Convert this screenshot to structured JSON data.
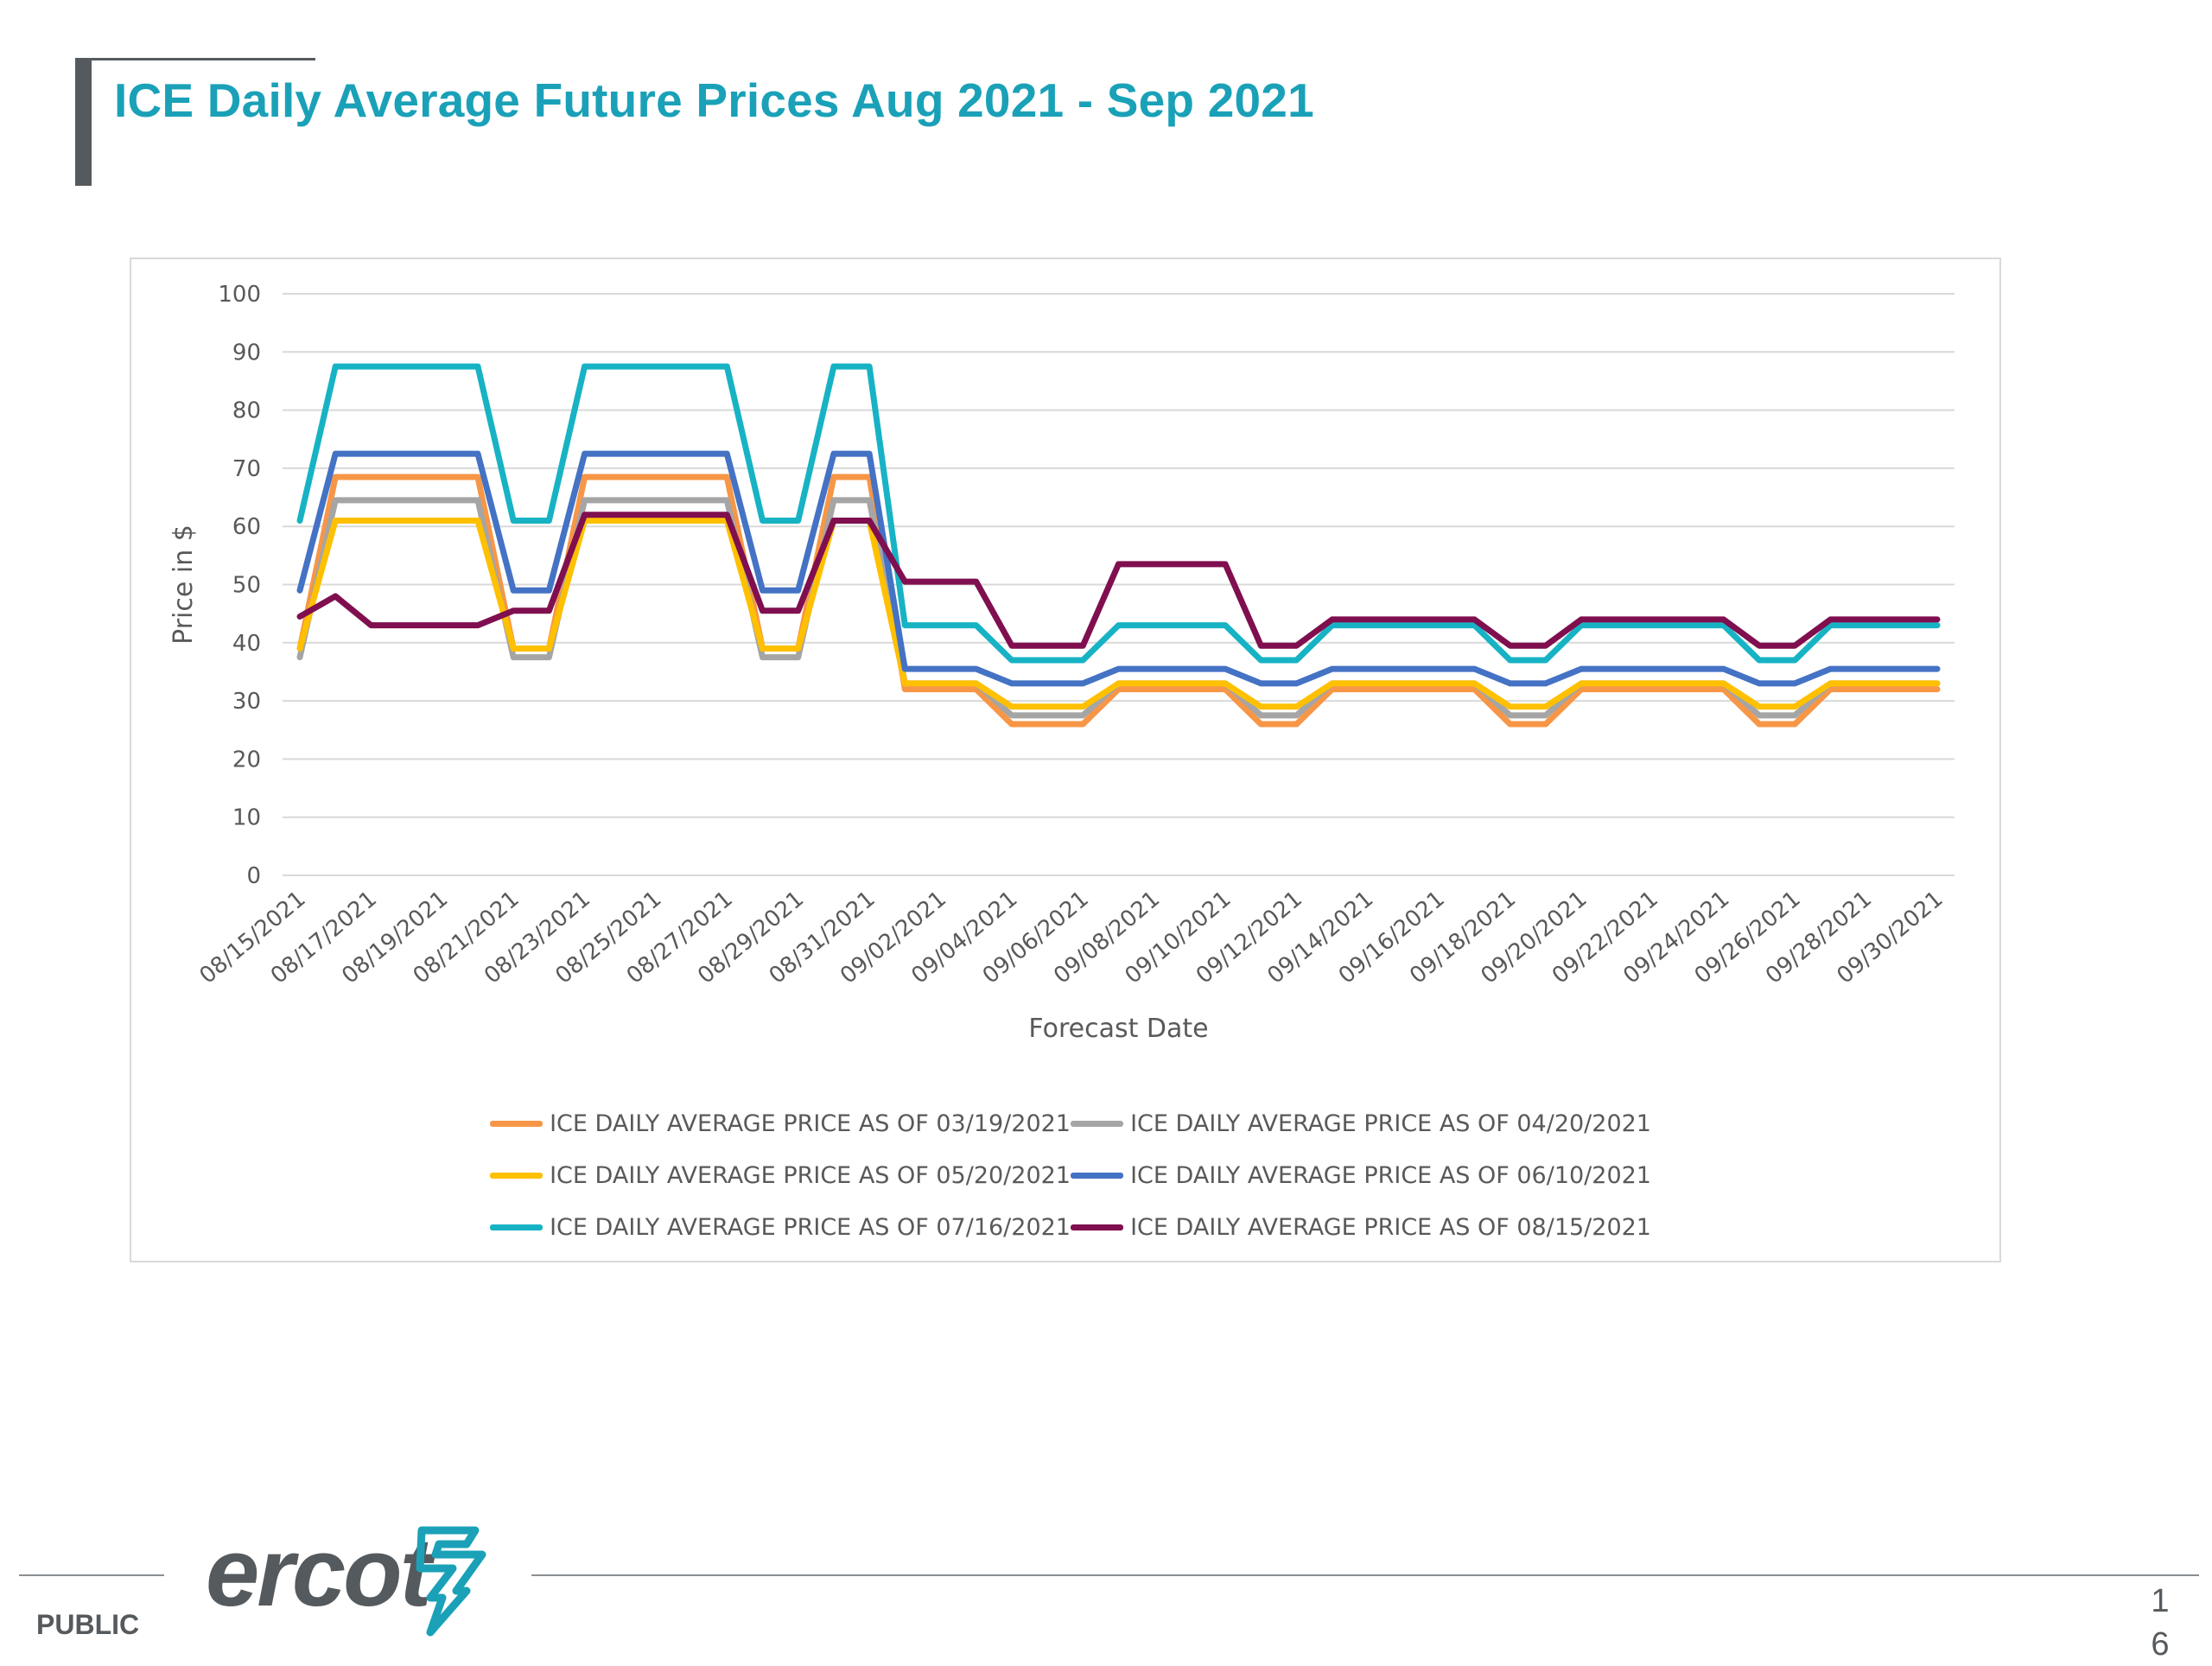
{
  "slide": {
    "title": "ICE Daily Average Future Prices Aug 2021 - Sep 2021",
    "footer_label": "PUBLIC",
    "logo_text": "ercot",
    "page_number_line1": "1",
    "page_number_line2": "6"
  },
  "chart_data": {
    "type": "line",
    "title": "",
    "xlabel": "Forecast Date",
    "ylabel": "Price in $",
    "ylim": [
      0,
      100
    ],
    "yticks": [
      0,
      10,
      20,
      30,
      40,
      50,
      60,
      70,
      80,
      90,
      100
    ],
    "grid": true,
    "legend_position": "bottom",
    "x": [
      "08/15/2021",
      "08/16/2021",
      "08/17/2021",
      "08/18/2021",
      "08/19/2021",
      "08/20/2021",
      "08/21/2021",
      "08/22/2021",
      "08/23/2021",
      "08/24/2021",
      "08/25/2021",
      "08/26/2021",
      "08/27/2021",
      "08/28/2021",
      "08/29/2021",
      "08/30/2021",
      "08/31/2021",
      "09/01/2021",
      "09/02/2021",
      "09/03/2021",
      "09/04/2021",
      "09/05/2021",
      "09/06/2021",
      "09/07/2021",
      "09/08/2021",
      "09/09/2021",
      "09/10/2021",
      "09/11/2021",
      "09/12/2021",
      "09/13/2021",
      "09/14/2021",
      "09/15/2021",
      "09/16/2021",
      "09/17/2021",
      "09/18/2021",
      "09/19/2021",
      "09/20/2021",
      "09/21/2021",
      "09/22/2021",
      "09/23/2021",
      "09/24/2021",
      "09/25/2021",
      "09/26/2021",
      "09/27/2021",
      "09/28/2021",
      "09/29/2021",
      "09/30/2021"
    ],
    "x_tick_labels": [
      "08/15/2021",
      "08/17/2021",
      "08/19/2021",
      "08/21/2021",
      "08/23/2021",
      "08/25/2021",
      "08/27/2021",
      "08/29/2021",
      "08/31/2021",
      "09/02/2021",
      "09/04/2021",
      "09/06/2021",
      "09/08/2021",
      "09/10/2021",
      "09/12/2021",
      "09/14/2021",
      "09/16/2021",
      "09/18/2021",
      "09/20/2021",
      "09/22/2021",
      "09/24/2021",
      "09/26/2021",
      "09/28/2021",
      "09/30/2021"
    ],
    "series": [
      {
        "name": "ICE DAILY AVERAGE PRICE AS OF 03/19/2021",
        "color": "#f79646",
        "values": [
          39,
          68.5,
          68.5,
          68.5,
          68.5,
          68.5,
          39,
          39,
          68.5,
          68.5,
          68.5,
          68.5,
          68.5,
          39,
          39,
          68.5,
          68.5,
          32,
          32,
          32,
          26,
          26,
          26,
          32,
          32,
          32,
          32,
          26,
          26,
          32,
          32,
          32,
          32,
          32,
          26,
          26,
          32,
          32,
          32,
          32,
          32,
          26,
          26,
          32,
          32,
          32,
          32
        ]
      },
      {
        "name": "ICE DAILY AVERAGE PRICE AS OF 04/20/2021",
        "color": "#a5a5a5",
        "values": [
          37.5,
          64.5,
          64.5,
          64.5,
          64.5,
          64.5,
          37.5,
          37.5,
          64.5,
          64.5,
          64.5,
          64.5,
          64.5,
          37.5,
          37.5,
          64.5,
          64.5,
          33,
          33,
          33,
          27.5,
          27.5,
          27.5,
          33,
          33,
          33,
          33,
          27.5,
          27.5,
          33,
          33,
          33,
          33,
          33,
          27.5,
          27.5,
          33,
          33,
          33,
          33,
          33,
          27.5,
          27.5,
          33,
          33,
          33,
          33
        ]
      },
      {
        "name": "ICE DAILY AVERAGE PRICE AS OF 05/20/2021",
        "color": "#ffc000",
        "values": [
          39,
          61,
          61,
          61,
          61,
          61,
          39,
          39,
          61,
          61,
          61,
          61,
          61,
          39,
          39,
          61,
          61,
          33,
          33,
          33,
          29,
          29,
          29,
          33,
          33,
          33,
          33,
          29,
          29,
          33,
          33,
          33,
          33,
          33,
          29,
          29,
          33,
          33,
          33,
          33,
          33,
          29,
          29,
          33,
          33,
          33,
          33
        ]
      },
      {
        "name": "ICE DAILY AVERAGE PRICE AS OF 06/10/2021",
        "color": "#4472c4",
        "values": [
          49,
          72.5,
          72.5,
          72.5,
          72.5,
          72.5,
          49,
          49,
          72.5,
          72.5,
          72.5,
          72.5,
          72.5,
          49,
          49,
          72.5,
          72.5,
          35.5,
          35.5,
          35.5,
          33,
          33,
          33,
          35.5,
          35.5,
          35.5,
          35.5,
          33,
          33,
          35.5,
          35.5,
          35.5,
          35.5,
          35.5,
          33,
          33,
          35.5,
          35.5,
          35.5,
          35.5,
          35.5,
          33,
          33,
          35.5,
          35.5,
          35.5,
          35.5
        ]
      },
      {
        "name": "ICE DAILY AVERAGE PRICE AS OF 07/16/2021",
        "color": "#17b3c4",
        "values": [
          61,
          87.5,
          87.5,
          87.5,
          87.5,
          87.5,
          61,
          61,
          87.5,
          87.5,
          87.5,
          87.5,
          87.5,
          61,
          61,
          87.5,
          87.5,
          43,
          43,
          43,
          37,
          37,
          37,
          43,
          43,
          43,
          43,
          37,
          37,
          43,
          43,
          43,
          43,
          43,
          37,
          37,
          43,
          43,
          43,
          43,
          43,
          37,
          37,
          43,
          43,
          43,
          43
        ]
      },
      {
        "name": "ICE DAILY AVERAGE PRICE AS OF 08/15/2021",
        "color": "#7f0f4f",
        "values": [
          44.5,
          48,
          43,
          43,
          43,
          43,
          45.5,
          45.5,
          62,
          62,
          62,
          62,
          62,
          45.5,
          45.5,
          61,
          61,
          50.5,
          50.5,
          50.5,
          39.5,
          39.5,
          39.5,
          53.5,
          53.5,
          53.5,
          53.5,
          39.5,
          39.5,
          44,
          44,
          44,
          44,
          44,
          39.5,
          39.5,
          44,
          44,
          44,
          44,
          44,
          39.5,
          39.5,
          44,
          44,
          44,
          44
        ]
      }
    ]
  }
}
